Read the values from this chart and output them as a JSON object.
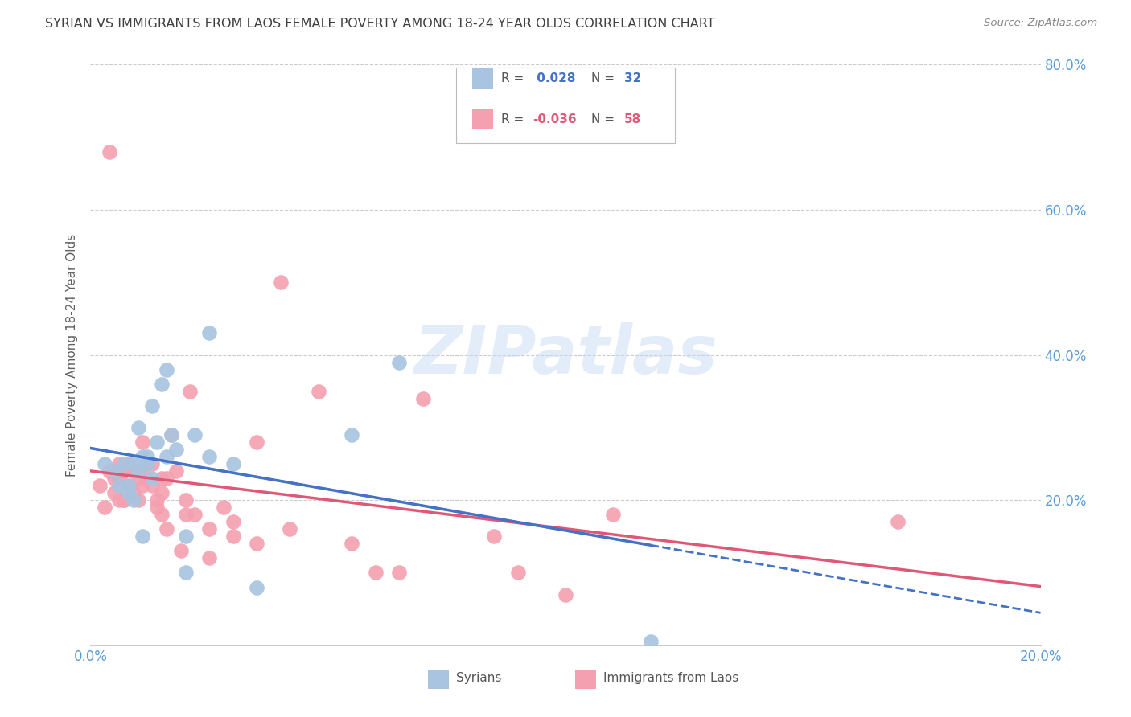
{
  "title": "SYRIAN VS IMMIGRANTS FROM LAOS FEMALE POVERTY AMONG 18-24 YEAR OLDS CORRELATION CHART",
  "source": "Source: ZipAtlas.com",
  "ylabel": "Female Poverty Among 18-24 Year Olds",
  "xlim": [
    0.0,
    0.2
  ],
  "ylim": [
    0.0,
    0.8
  ],
  "syrian_color": "#a8c4e0",
  "laos_color": "#f4a0b0",
  "syrian_line_color": "#4472c4",
  "laos_line_color": "#e05878",
  "watermark_text": "ZIPatlas",
  "background_color": "#ffffff",
  "grid_color": "#cccccc",
  "title_color": "#404040",
  "axis_label_color": "#606060",
  "right_tick_color": "#5b9bd5",
  "bottom_tick_color": "#5b9bd5",
  "legend_r1": "R =  0.028",
  "legend_n1": "N = 32",
  "legend_r2": "R = -0.036",
  "legend_n2": "N = 58",
  "syrian_x": [
    0.003,
    0.005,
    0.006,
    0.007,
    0.008,
    0.008,
    0.009,
    0.009,
    0.01,
    0.01,
    0.011,
    0.011,
    0.012,
    0.012,
    0.013,
    0.013,
    0.014,
    0.015,
    0.016,
    0.016,
    0.017,
    0.018,
    0.02,
    0.02,
    0.022,
    0.025,
    0.025,
    0.03,
    0.035,
    0.055,
    0.065,
    0.118
  ],
  "syrian_y": [
    0.25,
    0.24,
    0.22,
    0.25,
    0.21,
    0.22,
    0.2,
    0.25,
    0.24,
    0.3,
    0.15,
    0.26,
    0.25,
    0.26,
    0.23,
    0.33,
    0.28,
    0.36,
    0.38,
    0.26,
    0.29,
    0.27,
    0.15,
    0.1,
    0.29,
    0.43,
    0.26,
    0.25,
    0.08,
    0.29,
    0.39,
    0.005
  ],
  "laos_x": [
    0.002,
    0.003,
    0.004,
    0.004,
    0.005,
    0.005,
    0.006,
    0.006,
    0.006,
    0.007,
    0.007,
    0.007,
    0.008,
    0.008,
    0.009,
    0.009,
    0.01,
    0.01,
    0.01,
    0.011,
    0.011,
    0.012,
    0.012,
    0.013,
    0.013,
    0.014,
    0.014,
    0.015,
    0.015,
    0.015,
    0.016,
    0.016,
    0.017,
    0.018,
    0.019,
    0.02,
    0.02,
    0.021,
    0.022,
    0.025,
    0.025,
    0.028,
    0.03,
    0.03,
    0.035,
    0.035,
    0.04,
    0.042,
    0.048,
    0.055,
    0.06,
    0.065,
    0.07,
    0.085,
    0.09,
    0.1,
    0.11,
    0.17
  ],
  "laos_y": [
    0.22,
    0.19,
    0.24,
    0.68,
    0.23,
    0.21,
    0.25,
    0.23,
    0.2,
    0.24,
    0.2,
    0.2,
    0.22,
    0.25,
    0.24,
    0.21,
    0.24,
    0.2,
    0.23,
    0.28,
    0.22,
    0.23,
    0.25,
    0.22,
    0.25,
    0.2,
    0.19,
    0.21,
    0.18,
    0.23,
    0.16,
    0.23,
    0.29,
    0.24,
    0.13,
    0.2,
    0.18,
    0.35,
    0.18,
    0.16,
    0.12,
    0.19,
    0.17,
    0.15,
    0.14,
    0.28,
    0.5,
    0.16,
    0.35,
    0.14,
    0.1,
    0.1,
    0.34,
    0.15,
    0.1,
    0.07,
    0.18,
    0.17
  ]
}
